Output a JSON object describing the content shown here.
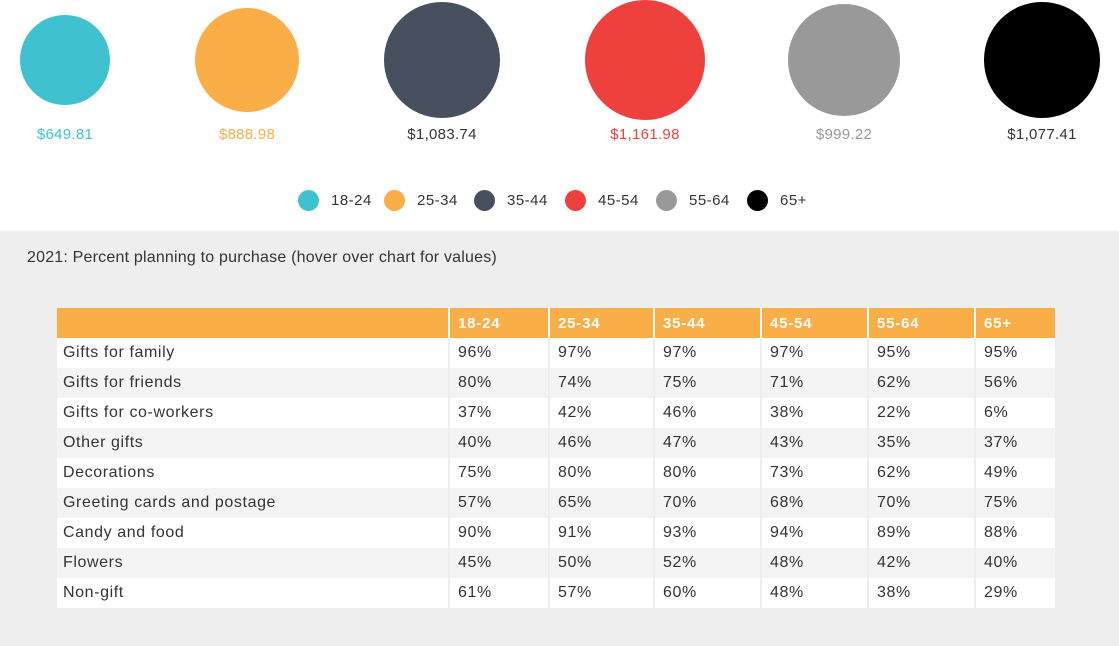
{
  "chart_data": [
    {
      "type": "bubble",
      "categories": [
        "18-24",
        "25-34",
        "35-44",
        "45-54",
        "55-64",
        "65+"
      ],
      "values": [
        649.81,
        888.98,
        1083.74,
        1161.98,
        999.22,
        1077.41
      ],
      "value_labels": [
        "$649.81",
        "$888.98",
        "$1,083.74",
        "$1,161.98",
        "$999.22",
        "$1,077.41"
      ],
      "colors": [
        "#3fc1d0",
        "#f9ae47",
        "#46505e",
        "#ee403d",
        "#999999",
        "#000000"
      ],
      "legend": {
        "position": "bottom-center",
        "entries": [
          "18-24",
          "25-34",
          "35-44",
          "45-54",
          "55-64",
          "65+"
        ]
      }
    },
    {
      "type": "table",
      "title": "2021: Percent planning to purchase (hover over chart for values)",
      "columns": [
        "",
        "18-24",
        "25-34",
        "35-44",
        "45-54",
        "55-64",
        "65+"
      ],
      "rows": [
        [
          "Gifts for family",
          "96%",
          "97%",
          "97%",
          "97%",
          "95%",
          "95%"
        ],
        [
          "Gifts for friends",
          "80%",
          "74%",
          "75%",
          "71%",
          "62%",
          "56%"
        ],
        [
          "Gifts for co-workers",
          "37%",
          "42%",
          "46%",
          "38%",
          "22%",
          "6%"
        ],
        [
          "Other gifts",
          "40%",
          "46%",
          "47%",
          "43%",
          "35%",
          "37%"
        ],
        [
          "Decorations",
          "75%",
          "80%",
          "80%",
          "73%",
          "62%",
          "49%"
        ],
        [
          "Greeting cards and postage",
          "57%",
          "65%",
          "70%",
          "68%",
          "70%",
          "75%"
        ],
        [
          "Candy and food",
          "90%",
          "91%",
          "93%",
          "94%",
          "89%",
          "88%"
        ],
        [
          "Flowers",
          "45%",
          "50%",
          "52%",
          "48%",
          "42%",
          "40%"
        ],
        [
          "Non-gift",
          "61%",
          "57%",
          "60%",
          "48%",
          "38%",
          "29%"
        ]
      ],
      "header_color": "#f9ae47"
    }
  ]
}
